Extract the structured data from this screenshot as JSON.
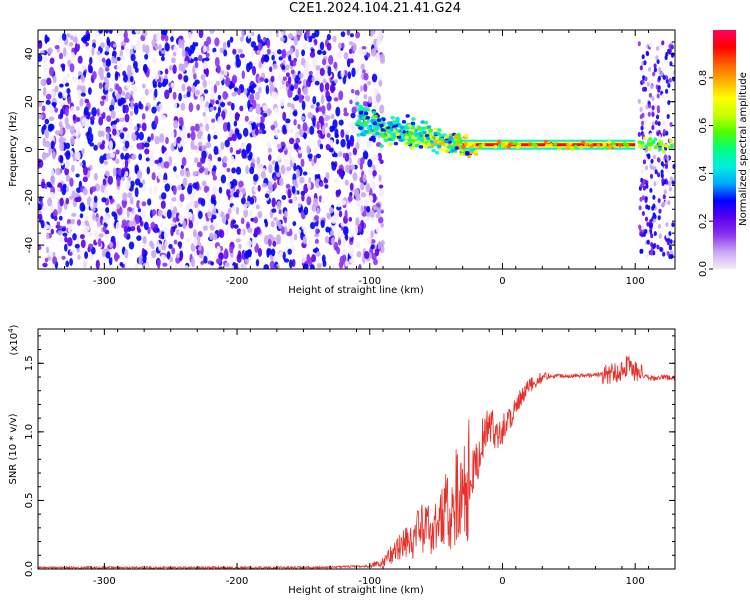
{
  "title": "C2E1.2024.104.21.41.G24",
  "chart_data": [
    {
      "type": "heatmap",
      "xlabel": "Height of straight line (km)",
      "ylabel": "Frequency (Hz)",
      "xlim": [
        -350,
        130
      ],
      "ylim": [
        -50,
        50
      ],
      "xticks": [
        -300,
        -200,
        -100,
        0,
        100
      ],
      "yticks": [
        -40,
        -20,
        0,
        20,
        40
      ],
      "colorbar": {
        "label": "Normalized spectral amplitude",
        "range": [
          0,
          1
        ],
        "ticks": [
          "0.0",
          "0.2",
          "0.4",
          "0.6",
          "0.8"
        ],
        "colors": [
          "#f4ecfb",
          "#c8a8f2",
          "#8c32f0",
          "#5a00f0",
          "#0000ff",
          "#00aaff",
          "#00f0e0",
          "#00ff80",
          "#4cff00",
          "#c8ff00",
          "#ffff00",
          "#ffb000",
          "#ff6000",
          "#ff0000",
          "#ff0060"
        ]
      },
      "regions": [
        {
          "name": "broadband noise",
          "x": [
            -350,
            -90
          ],
          "freq": [
            -50,
            50
          ],
          "amplitude": 0.25
        },
        {
          "name": "signal onset",
          "x": [
            -110,
            -20
          ],
          "freq_center": [
            12,
            0
          ],
          "amplitude": 0.55
        },
        {
          "name": "narrowband tone",
          "x": [
            -30,
            100
          ],
          "freq_center": 2,
          "amplitude": 0.9
        },
        {
          "name": "late broadband",
          "x": [
            103,
            130
          ],
          "freq": [
            -45,
            45
          ],
          "amplitude": 0.3
        }
      ]
    },
    {
      "type": "line",
      "xlabel": "Height of straight line (km)",
      "ylabel": "SNR (10 * v/v)",
      "y_multiplier": "(x10^4)",
      "y_multiplier_base": "(x10",
      "y_multiplier_exp": "4",
      "y_multiplier_close": ")",
      "xlim": [
        -350,
        130
      ],
      "ylim": [
        0,
        1.75
      ],
      "xticks": [
        -300,
        -200,
        -100,
        0,
        100
      ],
      "yticks": [
        "0.0",
        "0.5",
        "1.0",
        "1.5"
      ],
      "color": "#e8302a",
      "series": [
        {
          "x": [
            -350,
            -300,
            -250,
            -200,
            -150,
            -100,
            -90,
            -80,
            -70,
            -60,
            -50,
            -40,
            -30,
            -20,
            -15,
            -10,
            -5,
            0,
            5,
            10,
            15,
            20,
            30,
            40,
            60,
            80,
            90,
            95,
            100,
            110,
            120,
            130
          ],
          "y": [
            0.01,
            0.01,
            0.01,
            0.01,
            0.01,
            0.02,
            0.05,
            0.14,
            0.22,
            0.28,
            0.33,
            0.45,
            0.58,
            0.75,
            0.95,
            1.05,
            1.0,
            1.02,
            1.1,
            1.18,
            1.25,
            1.33,
            1.4,
            1.41,
            1.41,
            1.42,
            1.45,
            1.5,
            1.44,
            1.39,
            1.4,
            1.39
          ]
        }
      ]
    }
  ]
}
